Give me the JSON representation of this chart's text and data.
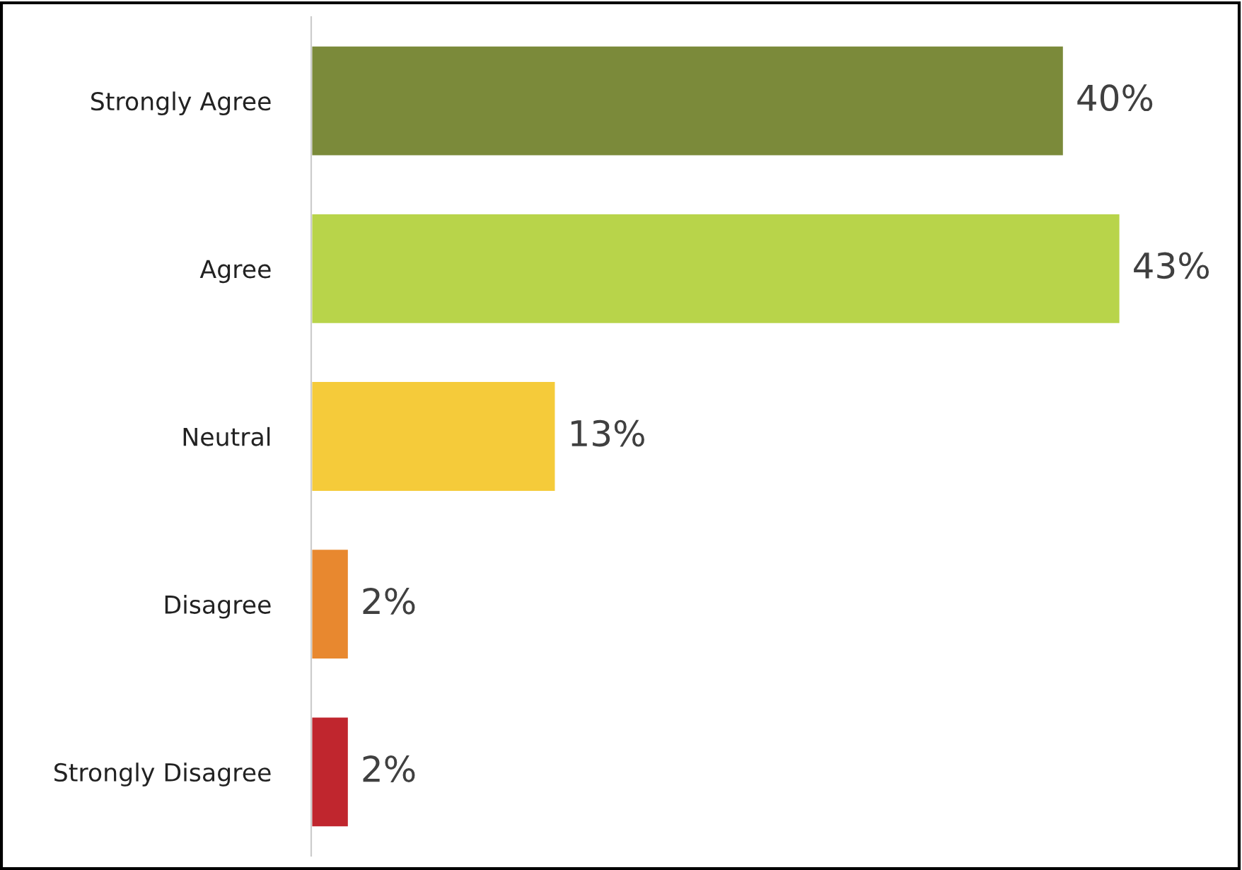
{
  "chart_data": {
    "type": "bar",
    "orientation": "horizontal",
    "categories": [
      "Strongly Agree",
      "Agree",
      "Neutral",
      "Disagree",
      "Strongly Disagree"
    ],
    "values": [
      40,
      43,
      13,
      2,
      2
    ],
    "colors": [
      "#7b8a3a",
      "#b8d44a",
      "#f5cb3a",
      "#e8882f",
      "#c0262e"
    ],
    "data_labels": true,
    "value_labels": [
      "40%",
      "43%",
      "13%",
      "2%",
      "2%"
    ],
    "grid": false,
    "legend": false
  }
}
